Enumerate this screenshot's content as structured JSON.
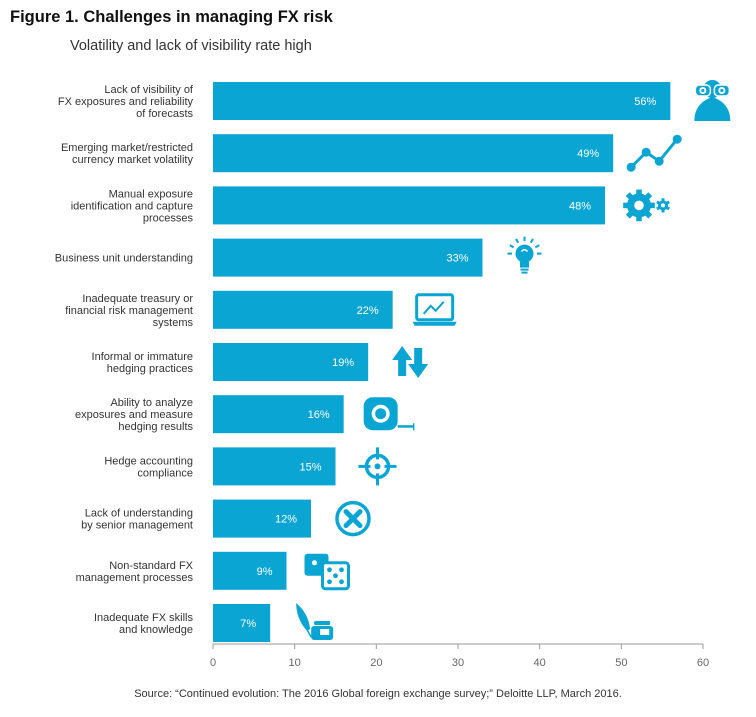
{
  "figure": {
    "title": "Figure 1. Challenges in managing FX risk",
    "subtitle": "Volatility and lack of visibility rate high",
    "source": "Source: “Continued evolution: The 2016 Global foreign exchange survey;” Deloitte LLP, March 2016."
  },
  "colors": {
    "bar": "#0aa5d3",
    "icon": "#0aa5d3",
    "axis": "#999999"
  },
  "chart_data": {
    "type": "bar",
    "orientation": "horizontal",
    "title": "Figure 1. Challenges in managing FX risk",
    "subtitle": "Volatility and lack of visibility rate high",
    "xlabel": "",
    "ylabel": "",
    "xlim": [
      0,
      60
    ],
    "ticks": [
      0,
      10,
      20,
      30,
      40,
      50,
      60
    ],
    "grid": false,
    "categories": [
      "Lack of visibility of\nFX exposures and reliability\nof forecasts",
      "Emerging market/restricted\ncurrency market volatility",
      "Manual exposure\nidentification and capture\nprocesses",
      "Business unit understanding",
      "Inadequate treasury or\nfinancial risk management\nsystems",
      "Informal or immature\nhedging practices",
      "Ability to analyze\nexposures and measure\nhedging results",
      "Hedge accounting\ncompliance",
      "Lack of understanding\nby senior management",
      "Non-standard FX\nmanagement processes",
      "Inadequate FX skills\nand knowledge"
    ],
    "values": [
      56,
      49,
      48,
      33,
      22,
      19,
      16,
      15,
      12,
      9,
      7
    ],
    "data_labels": [
      "56%",
      "49%",
      "48%",
      "33%",
      "22%",
      "19%",
      "16%",
      "15%",
      "12%",
      "9%",
      "7%"
    ],
    "icons": [
      "binoculars-icon",
      "trend-line-icon",
      "gears-icon",
      "lightbulb-icon",
      "laptop-chart-icon",
      "up-down-arrows-icon",
      "tape-measure-icon",
      "crosshair-icon",
      "close-circle-icon",
      "dice-icon",
      "quill-ink-icon"
    ]
  }
}
